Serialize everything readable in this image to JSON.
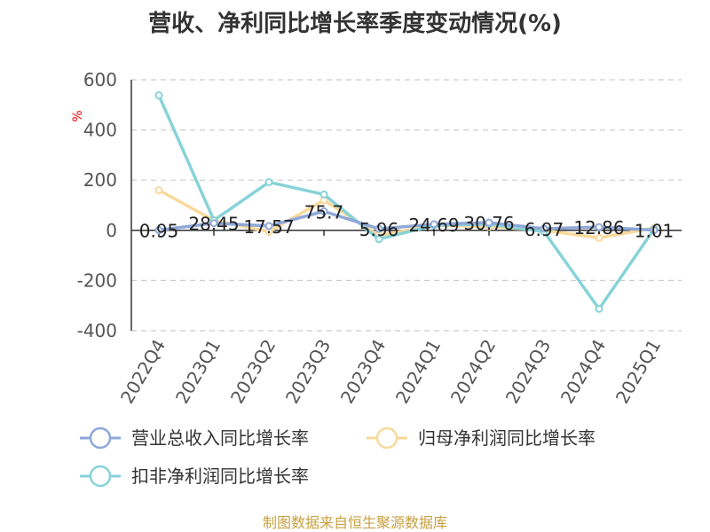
{
  "chart_data": {
    "type": "line",
    "title": "营收、净利同比增长率季度变动情况(%)",
    "ylabel": "%",
    "ylim": [
      -400,
      600
    ],
    "yticks": [
      600,
      400,
      200,
      0,
      -200,
      -400
    ],
    "grid": true,
    "legend_position": "bottom",
    "categories": [
      "2022Q4",
      "2023Q1",
      "2023Q2",
      "2023Q3",
      "2023Q4",
      "2024Q1",
      "2024Q2",
      "2024Q3",
      "2024Q4",
      "2025Q1"
    ],
    "series": [
      {
        "name": "营业总收入同比增长率",
        "color": "#8fa8d8",
        "values": [
          0.95,
          28.45,
          17.57,
          75.7,
          5.96,
          24.69,
          30.76,
          6.97,
          12.86,
          1.01
        ],
        "labels": [
          "0.95",
          "28.45",
          "17.57",
          "75.7",
          "5.96",
          "24.69",
          "30.76",
          "6.97",
          "12.86",
          "1.01"
        ]
      },
      {
        "name": "归母净利润同比增长率",
        "color": "#f9d99a",
        "values": [
          160,
          40,
          -5,
          120,
          -20,
          20,
          15,
          0,
          -30,
          10
        ]
      },
      {
        "name": "扣非净利润同比增长率",
        "color": "#87d3d8",
        "values": [
          538,
          40,
          192,
          143,
          -35,
          20,
          25,
          -5,
          -313,
          5
        ]
      }
    ]
  },
  "source": "制图数据来自恒生聚源数据库"
}
